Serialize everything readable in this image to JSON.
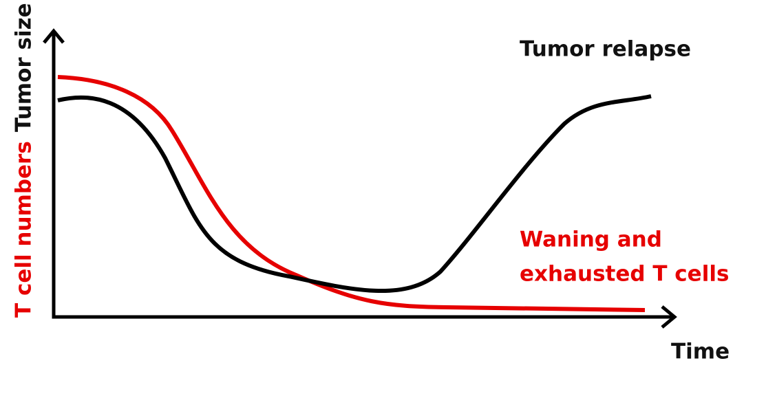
{
  "axes": {
    "y_label_top": "Tumor size",
    "y_label_bottom": "T cell numbers",
    "x_label": "Time"
  },
  "annotations": {
    "relapse": "Tumor relapse",
    "waning": [
      "Waning and",
      "exhausted T cells"
    ]
  }
}
